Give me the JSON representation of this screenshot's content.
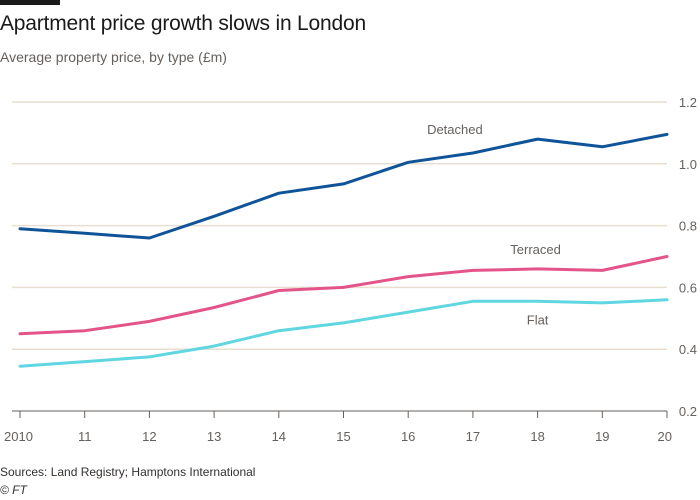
{
  "header": {
    "title": "Apartment price growth slows in London",
    "subtitle": "Average property price, by type (£m)"
  },
  "footer": {
    "source": "Sources: Land Registry; Hamptons International",
    "credit": "© FT"
  },
  "colors": {
    "detached": "#0f5499",
    "terraced": "#e3548a",
    "flat": "#5fd6e0",
    "grid": "#e9decf",
    "axis": "#66605c"
  },
  "chart_data": {
    "type": "line",
    "title": "Apartment price growth slows in London",
    "subtitle": "Average property price, by type (£m)",
    "xlabel": "",
    "ylabel": "",
    "x": [
      2010,
      2011,
      2012,
      2013,
      2014,
      2015,
      2016,
      2017,
      2018,
      2019,
      2020
    ],
    "x_tick_labels": [
      "2010",
      "11",
      "12",
      "13",
      "14",
      "15",
      "16",
      "17",
      "18",
      "19",
      "20"
    ],
    "y_ticks": [
      0.2,
      0.4,
      0.6,
      0.8,
      1.0,
      1.2
    ],
    "y_tick_labels": [
      "0.2",
      "0.4",
      "0.6",
      "0.8",
      "1.0",
      "1.2"
    ],
    "ylim": [
      0.2,
      1.2
    ],
    "y_axis_side": "right",
    "series": [
      {
        "name": "Detached",
        "key": "detached",
        "values": [
          0.79,
          0.775,
          0.76,
          0.83,
          0.905,
          0.935,
          1.005,
          1.035,
          1.08,
          1.055,
          1.095
        ]
      },
      {
        "name": "Terraced",
        "key": "terraced",
        "values": [
          0.45,
          0.46,
          0.49,
          0.535,
          0.59,
          0.6,
          0.635,
          0.655,
          0.66,
          0.655,
          0.7
        ]
      },
      {
        "name": "Flat",
        "key": "flat",
        "values": [
          0.345,
          0.36,
          0.375,
          0.41,
          0.46,
          0.485,
          0.52,
          0.555,
          0.555,
          0.55,
          0.56
        ]
      }
    ]
  }
}
